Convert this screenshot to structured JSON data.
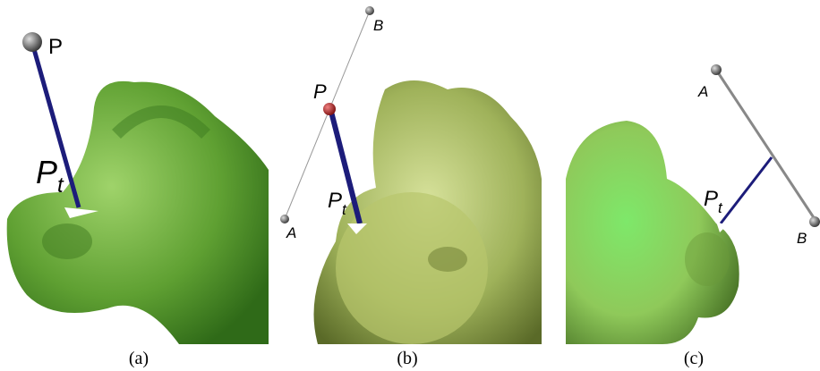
{
  "panels": [
    {
      "caption": "(a)",
      "point": "P",
      "projected": {
        "main": "P",
        "sub": "t"
      }
    },
    {
      "caption": "(b)",
      "point": "P",
      "projected": {
        "main": "P",
        "sub": "t"
      },
      "end_a": "A",
      "end_b": "B"
    },
    {
      "caption": "(c)",
      "projected": {
        "main": "P",
        "sub": "t"
      },
      "end_a": "A",
      "end_b": "B"
    }
  ]
}
